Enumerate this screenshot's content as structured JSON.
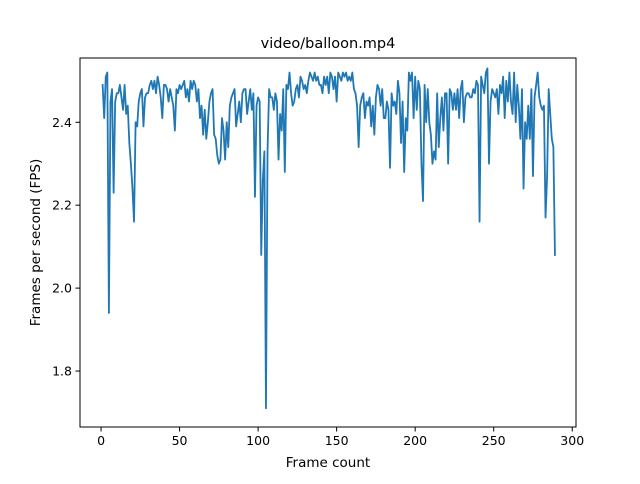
{
  "chart_data": {
    "type": "line",
    "title": "video/balloon.mp4",
    "xlabel": "Frame count",
    "ylabel": "Frames per second (FPS)",
    "xlim": [
      -13.4,
      302.4
    ],
    "ylim": [
      1.665,
      2.555
    ],
    "xticks": [
      0,
      50,
      100,
      150,
      200,
      250,
      300
    ],
    "yticks": [
      1.8,
      2.0,
      2.2,
      2.4
    ],
    "ytick_labels": [
      "1.8",
      "2.0",
      "2.2",
      "2.4"
    ],
    "grid": false,
    "legend": "none",
    "colors": {
      "line": "#1f77b4"
    },
    "series": [
      {
        "points": [
          [
            1,
            2.49
          ],
          [
            2,
            2.41
          ],
          [
            3,
            2.51
          ],
          [
            4,
            2.52
          ],
          [
            5,
            1.94
          ],
          [
            6,
            2.45
          ],
          [
            7,
            2.48
          ],
          [
            8,
            2.23
          ],
          [
            9,
            2.45
          ],
          [
            10,
            2.47
          ],
          [
            11,
            2.47
          ],
          [
            12,
            2.49
          ],
          [
            13,
            2.46
          ],
          [
            14,
            2.43
          ],
          [
            15,
            2.49
          ],
          [
            16,
            2.42
          ],
          [
            17,
            2.44
          ],
          [
            18,
            2.35
          ],
          [
            19,
            2.3
          ],
          [
            20,
            2.24
          ],
          [
            21,
            2.16
          ],
          [
            22,
            2.4
          ],
          [
            23,
            2.39
          ],
          [
            24,
            2.45
          ],
          [
            25,
            2.47
          ],
          [
            26,
            2.48
          ],
          [
            27,
            2.39
          ],
          [
            28,
            2.46
          ],
          [
            29,
            2.47
          ],
          [
            30,
            2.47
          ],
          [
            31,
            2.49
          ],
          [
            32,
            2.5
          ],
          [
            33,
            2.48
          ],
          [
            34,
            2.5
          ],
          [
            35,
            2.47
          ],
          [
            36,
            2.51
          ],
          [
            37,
            2.49
          ],
          [
            38,
            2.46
          ],
          [
            39,
            2.41
          ],
          [
            40,
            2.49
          ],
          [
            41,
            2.49
          ],
          [
            42,
            2.48
          ],
          [
            43,
            2.45
          ],
          [
            44,
            2.48
          ],
          [
            45,
            2.46
          ],
          [
            46,
            2.44
          ],
          [
            47,
            2.38
          ],
          [
            48,
            2.48
          ],
          [
            49,
            2.47
          ],
          [
            50,
            2.49
          ],
          [
            51,
            2.48
          ],
          [
            52,
            2.49
          ],
          [
            53,
            2.5
          ],
          [
            54,
            2.46
          ],
          [
            55,
            2.48
          ],
          [
            56,
            2.45
          ],
          [
            57,
            2.5
          ],
          [
            58,
            2.48
          ],
          [
            59,
            2.5
          ],
          [
            60,
            2.49
          ],
          [
            61,
            2.45
          ],
          [
            62,
            2.48
          ],
          [
            63,
            2.41
          ],
          [
            64,
            2.44
          ],
          [
            65,
            2.37
          ],
          [
            66,
            2.43
          ],
          [
            67,
            2.36
          ],
          [
            68,
            2.4
          ],
          [
            69,
            2.45
          ],
          [
            70,
            2.47
          ],
          [
            71,
            2.48
          ],
          [
            72,
            2.37
          ],
          [
            73,
            2.36
          ],
          [
            74,
            2.32
          ],
          [
            75,
            2.3
          ],
          [
            76,
            2.31
          ],
          [
            77,
            2.41
          ],
          [
            78,
            2.38
          ],
          [
            79,
            2.31
          ],
          [
            80,
            2.4
          ],
          [
            81,
            2.34
          ],
          [
            82,
            2.44
          ],
          [
            83,
            2.46
          ],
          [
            84,
            2.47
          ],
          [
            85,
            2.48
          ],
          [
            86,
            2.39
          ],
          [
            87,
            2.42
          ],
          [
            88,
            2.45
          ],
          [
            89,
            2.4
          ],
          [
            90,
            2.47
          ],
          [
            91,
            2.48
          ],
          [
            92,
            2.48
          ],
          [
            93,
            2.42
          ],
          [
            94,
            2.45
          ],
          [
            95,
            2.48
          ],
          [
            96,
            2.43
          ],
          [
            97,
            2.47
          ],
          [
            98,
            2.22
          ],
          [
            99,
            2.44
          ],
          [
            100,
            2.46
          ],
          [
            101,
            2.45
          ],
          [
            102,
            2.08
          ],
          [
            103,
            2.26
          ],
          [
            104,
            2.33
          ],
          [
            105,
            1.71
          ],
          [
            106,
            2.33
          ],
          [
            107,
            2.48
          ],
          [
            108,
            2.46
          ],
          [
            109,
            2.46
          ],
          [
            110,
            2.43
          ],
          [
            111,
            2.47
          ],
          [
            112,
            2.45
          ],
          [
            113,
            2.31
          ],
          [
            114,
            2.42
          ],
          [
            115,
            2.38
          ],
          [
            116,
            2.48
          ],
          [
            117,
            2.28
          ],
          [
            118,
            2.49
          ],
          [
            119,
            2.48
          ],
          [
            120,
            2.52
          ],
          [
            121,
            2.47
          ],
          [
            122,
            2.44
          ],
          [
            123,
            2.45
          ],
          [
            124,
            2.48
          ],
          [
            125,
            2.49
          ],
          [
            126,
            2.46
          ],
          [
            127,
            2.51
          ],
          [
            128,
            2.5
          ],
          [
            129,
            2.48
          ],
          [
            130,
            2.49
          ],
          [
            131,
            2.47
          ],
          [
            132,
            2.5
          ],
          [
            133,
            2.52
          ],
          [
            134,
            2.51
          ],
          [
            135,
            2.5
          ],
          [
            136,
            2.52
          ],
          [
            137,
            2.5
          ],
          [
            138,
            2.51
          ],
          [
            139,
            2.49
          ],
          [
            140,
            2.49
          ],
          [
            141,
            2.47
          ],
          [
            142,
            2.51
          ],
          [
            143,
            2.49
          ],
          [
            144,
            2.51
          ],
          [
            145,
            2.47
          ],
          [
            146,
            2.52
          ],
          [
            147,
            2.51
          ],
          [
            148,
            2.48
          ],
          [
            149,
            2.51
          ],
          [
            150,
            2.45
          ],
          [
            151,
            2.52
          ],
          [
            152,
            2.51
          ],
          [
            153,
            2.5
          ],
          [
            154,
            2.52
          ],
          [
            155,
            2.51
          ],
          [
            156,
            2.52
          ],
          [
            157,
            2.5
          ],
          [
            158,
            2.51
          ],
          [
            159,
            2.5
          ],
          [
            160,
            2.52
          ],
          [
            161,
            2.48
          ],
          [
            162,
            2.47
          ],
          [
            163,
            2.44
          ],
          [
            164,
            2.34
          ],
          [
            165,
            2.44
          ],
          [
            166,
            2.46
          ],
          [
            167,
            2.47
          ],
          [
            168,
            2.41
          ],
          [
            169,
            2.45
          ],
          [
            170,
            2.44
          ],
          [
            171,
            2.46
          ],
          [
            172,
            2.39
          ],
          [
            173,
            2.44
          ],
          [
            174,
            2.37
          ],
          [
            175,
            2.46
          ],
          [
            176,
            2.49
          ],
          [
            177,
            2.48
          ],
          [
            178,
            2.44
          ],
          [
            179,
            2.48
          ],
          [
            180,
            2.41
          ],
          [
            181,
            2.41
          ],
          [
            182,
            2.45
          ],
          [
            183,
            2.43
          ],
          [
            184,
            2.29
          ],
          [
            185,
            2.47
          ],
          [
            186,
            2.44
          ],
          [
            187,
            2.45
          ],
          [
            188,
            2.42
          ],
          [
            189,
            2.5
          ],
          [
            190,
            2.47
          ],
          [
            191,
            2.35
          ],
          [
            192,
            2.45
          ],
          [
            193,
            2.28
          ],
          [
            194,
            2.41
          ],
          [
            195,
            2.38
          ],
          [
            196,
            2.52
          ],
          [
            197,
            2.5
          ],
          [
            198,
            2.52
          ],
          [
            199,
            2.41
          ],
          [
            200,
            2.51
          ],
          [
            201,
            2.43
          ],
          [
            202,
            2.5
          ],
          [
            203,
            2.48
          ],
          [
            204,
            2.3
          ],
          [
            205,
            2.21
          ],
          [
            206,
            2.49
          ],
          [
            207,
            2.4
          ],
          [
            208,
            2.48
          ],
          [
            209,
            2.4
          ],
          [
            210,
            2.37
          ],
          [
            211,
            2.3
          ],
          [
            212,
            2.33
          ],
          [
            213,
            2.31
          ],
          [
            214,
            2.47
          ],
          [
            215,
            2.34
          ],
          [
            216,
            2.41
          ],
          [
            217,
            2.46
          ],
          [
            218,
            2.38
          ],
          [
            219,
            2.47
          ],
          [
            220,
            2.47
          ],
          [
            221,
            2.3
          ],
          [
            222,
            2.48
          ],
          [
            223,
            2.47
          ],
          [
            224,
            2.43
          ],
          [
            225,
            2.47
          ],
          [
            226,
            2.43
          ],
          [
            227,
            2.48
          ],
          [
            228,
            2.41
          ],
          [
            229,
            2.48
          ],
          [
            230,
            2.5
          ],
          [
            231,
            2.4
          ],
          [
            232,
            2.46
          ],
          [
            233,
            2.47
          ],
          [
            234,
            2.47
          ],
          [
            235,
            2.46
          ],
          [
            236,
            2.46
          ],
          [
            237,
            2.48
          ],
          [
            238,
            2.47
          ],
          [
            239,
            2.5
          ],
          [
            240,
            2.49
          ],
          [
            241,
            2.16
          ],
          [
            242,
            2.51
          ],
          [
            243,
            2.49
          ],
          [
            244,
            2.47
          ],
          [
            245,
            2.52
          ],
          [
            246,
            2.53
          ],
          [
            247,
            2.3
          ],
          [
            248,
            2.45
          ],
          [
            249,
            2.48
          ],
          [
            250,
            2.47
          ],
          [
            251,
            2.46
          ],
          [
            252,
            2.48
          ],
          [
            253,
            2.42
          ],
          [
            254,
            2.49
          ],
          [
            255,
            2.47
          ],
          [
            256,
            2.51
          ],
          [
            257,
            2.41
          ],
          [
            258,
            2.5
          ],
          [
            259,
            2.45
          ],
          [
            260,
            2.52
          ],
          [
            261,
            2.45
          ],
          [
            262,
            2.42
          ],
          [
            263,
            2.52
          ],
          [
            264,
            2.4
          ],
          [
            265,
            2.49
          ],
          [
            266,
            2.44
          ],
          [
            267,
            2.36
          ],
          [
            268,
            2.48
          ],
          [
            269,
            2.24
          ],
          [
            270,
            2.4
          ],
          [
            271,
            2.36
          ],
          [
            272,
            2.44
          ],
          [
            273,
            2.36
          ],
          [
            274,
            2.48
          ],
          [
            275,
            2.27
          ],
          [
            276,
            2.46
          ],
          [
            277,
            2.49
          ],
          [
            278,
            2.52
          ],
          [
            279,
            2.46
          ],
          [
            280,
            2.44
          ],
          [
            281,
            2.43
          ],
          [
            282,
            2.44
          ],
          [
            283,
            2.17
          ],
          [
            284,
            2.27
          ],
          [
            285,
            2.48
          ],
          [
            286,
            2.42
          ],
          [
            287,
            2.36
          ],
          [
            288,
            2.34
          ],
          [
            289,
            2.08
          ]
        ]
      }
    ]
  }
}
